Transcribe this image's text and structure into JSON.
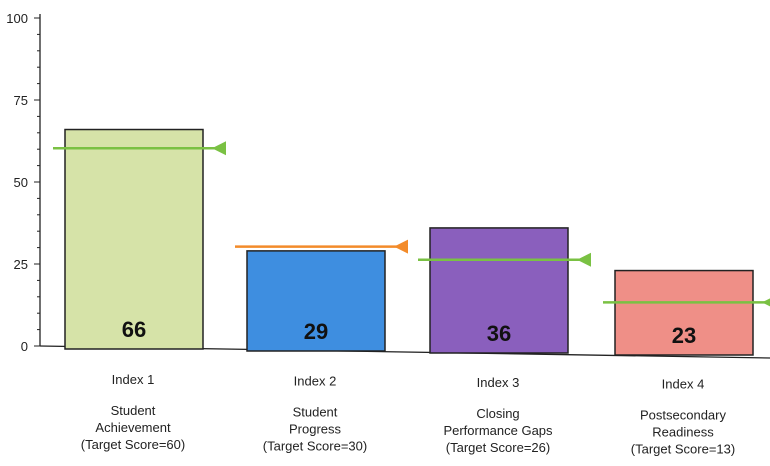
{
  "chart_data": {
    "type": "bar",
    "title": "",
    "xlabel": "",
    "ylabel": "",
    "ylim": [
      0,
      100
    ],
    "yticks": [
      0,
      25,
      50,
      75,
      100
    ],
    "grid": false,
    "categories": [
      "Index 1",
      "Index 2",
      "Index 3",
      "Index 4"
    ],
    "descriptions": [
      [
        "Student",
        "Achievement",
        "(Target Score=60)"
      ],
      [
        "Student",
        "Progress",
        "(Target Score=30)"
      ],
      [
        "Closing",
        "Performance Gaps",
        "(Target Score=26)"
      ],
      [
        "Postsecondary",
        "Readiness",
        "(Target Score=13)"
      ]
    ],
    "values": [
      66,
      29,
      36,
      23
    ],
    "value_labels": [
      "66",
      "29",
      "36",
      "23"
    ],
    "targets": [
      60,
      30,
      26,
      13
    ],
    "colors": {
      "bars": [
        "#d6e3a8",
        "#3e8ee0",
        "#8a5fbd",
        "#ef8f87"
      ],
      "bar_stroke": "#222222",
      "target_met": "#7ac143",
      "target_missed": "#f38b2a",
      "axis": "#222222"
    }
  }
}
